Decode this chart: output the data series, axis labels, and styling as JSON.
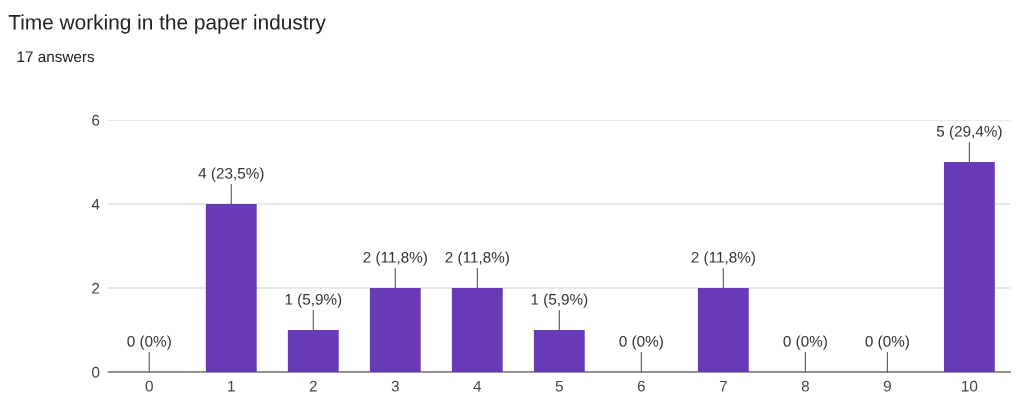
{
  "chart_data": {
    "type": "bar",
    "title": "Time working in the paper industry",
    "subtitle": "17 answers",
    "categories": [
      "0",
      "1",
      "2",
      "3",
      "4",
      "5",
      "6",
      "7",
      "8",
      "9",
      "10"
    ],
    "values": [
      0,
      4,
      1,
      2,
      2,
      1,
      0,
      2,
      0,
      0,
      5
    ],
    "value_labels": [
      "0 (0%)",
      "4 (23,5%)",
      "1 (5,9%)",
      "2 (11,8%)",
      "2 (11,8%)",
      "1 (5,9%)",
      "0 (0%)",
      "2 (11,8%)",
      "0 (0%)",
      "0 (0%)",
      "5 (29,4%)"
    ],
    "color": "#673ab7",
    "ylim": [
      0,
      6
    ],
    "yticks": [
      0,
      2,
      4,
      6
    ],
    "grid": "y",
    "legend": false
  }
}
